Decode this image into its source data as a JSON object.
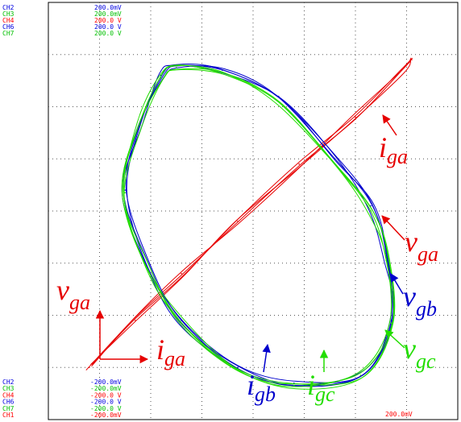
{
  "colors": {
    "ch2": "#0000e0",
    "ch3": "#00c000",
    "ch4": "#ff0000",
    "ch6": "#0000e0",
    "ch7": "#00c000",
    "ch1": "#ff0000",
    "red": "#e60000",
    "blue": "#0000cc",
    "green": "#22dd00",
    "grid": "#000000",
    "frame": "#000000"
  },
  "channels_top": [
    {
      "name": "CH2",
      "scale": "200.0mV",
      "color": "#0000e0"
    },
    {
      "name": "CH3",
      "scale": "200.0mV",
      "color": "#00c000"
    },
    {
      "name": "CH4",
      "scale": "200.0 V",
      "color": "#ff0000"
    },
    {
      "name": "CH6",
      "scale": "200.0 V",
      "color": "#0000e0"
    },
    {
      "name": "CH7",
      "scale": "200.0 V",
      "color": "#00c000"
    }
  ],
  "channels_bottom": [
    {
      "name": "CH2",
      "scale": "-200.0mV",
      "color": "#0000e0"
    },
    {
      "name": "CH3",
      "scale": "-200.0mV",
      "color": "#00c000"
    },
    {
      "name": "CH4",
      "scale": "-200.0 V",
      "color": "#ff0000"
    },
    {
      "name": "CH6",
      "scale": "-200.0 V",
      "color": "#0000e0"
    },
    {
      "name": "CH7",
      "scale": "-200.0 V",
      "color": "#00c000"
    },
    {
      "name": "CH1",
      "scale": "-200.0mV",
      "color": "#ff0000"
    }
  ],
  "x_scale_right": "200.0mV",
  "chart_data": {
    "type": "scatter",
    "title": "",
    "grid": true,
    "grid_divisions": {
      "x": 8,
      "y": 8
    },
    "xlim": [
      -4,
      4
    ],
    "ylim": [
      -4,
      4
    ],
    "series": [
      {
        "name": "v_ga vs i_ga",
        "color": "#e60000",
        "x": [
          -3.2,
          -2.3,
          -1.4,
          -0.3,
          0.9,
          2.0,
          2.9,
          3.1
        ],
        "y": [
          -3.0,
          -2.1,
          -1.2,
          -0.2,
          0.9,
          1.8,
          2.7,
          2.9
        ]
      },
      {
        "name": "i_gb",
        "color": "#0000cc",
        "x": [
          -1.8,
          -1.5,
          -0.6,
          0.5,
          1.6,
          2.3,
          2.6,
          2.7,
          2.1,
          0.8,
          -0.3,
          -1.4,
          -2.1,
          -2.5,
          -2.2,
          -1.8
        ],
        "y": [
          2.6,
          2.8,
          2.7,
          2.2,
          1.0,
          0.1,
          -0.9,
          -2.1,
          -3.1,
          -3.3,
          -3.0,
          -2.1,
          -1.0,
          0.4,
          1.7,
          2.6
        ]
      },
      {
        "name": "i_gc",
        "color": "#22dd00",
        "x": [
          -1.8,
          -1.5,
          -0.6,
          0.5,
          1.6,
          2.3,
          2.6,
          2.7,
          2.1,
          0.8,
          -0.3,
          -1.4,
          -2.1,
          -2.5,
          -2.2,
          -1.8
        ],
        "y": [
          2.55,
          2.75,
          2.65,
          2.1,
          0.9,
          0.0,
          -0.95,
          -2.15,
          -3.15,
          -3.35,
          -3.05,
          -2.15,
          -1.05,
          0.35,
          1.65,
          2.55
        ]
      }
    ]
  },
  "labels": {
    "i_ga_top": {
      "base": "i",
      "sub": "ga"
    },
    "v_ga_right": {
      "base": "v",
      "sub": "ga"
    },
    "v_gb": {
      "base": "v",
      "sub": "gb"
    },
    "v_gc": {
      "base": "v",
      "sub": "gc"
    },
    "i_gb": {
      "base": "i",
      "sub": "gb"
    },
    "i_gc": {
      "base": "i",
      "sub": "gc"
    },
    "axis_v_ga": {
      "base": "v",
      "sub": "ga"
    },
    "axis_i_ga": {
      "base": "i",
      "sub": "ga"
    }
  }
}
